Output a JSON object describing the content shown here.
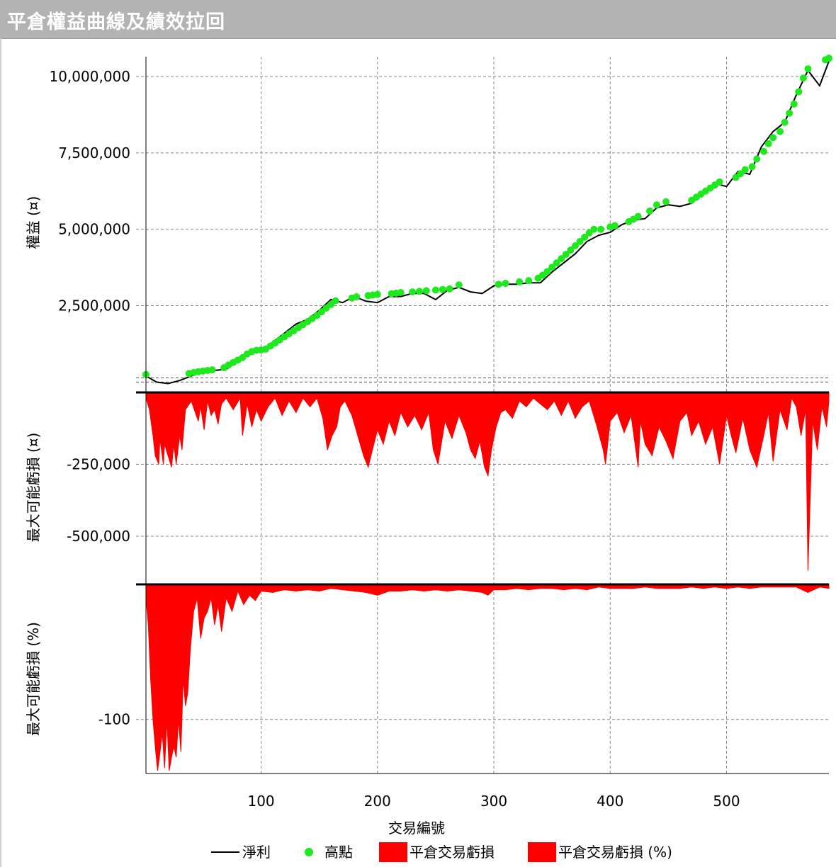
{
  "title": "平倉權益曲線及績效拉回",
  "colors": {
    "title_bg": "#b3b3b3",
    "equity_line": "#000000",
    "highs": "#1ee81e",
    "drawdown": "#ff0000",
    "grid": "#888888"
  },
  "chart_data": [
    {
      "type": "line",
      "panel": "equity",
      "ylabel": "權益 (¤)",
      "ylim": [
        -200000,
        10650000
      ],
      "yticks": [
        10000000,
        7500000,
        5000000,
        2500000
      ],
      "ytick_labels": [
        "10,000,000",
        "7,500,000",
        "5,000,000",
        "2,500,000"
      ],
      "series": [
        {
          "name": "淨利",
          "x": [
            1,
            10,
            20,
            30,
            40,
            50,
            60,
            70,
            80,
            90,
            100,
            110,
            120,
            130,
            140,
            150,
            160,
            170,
            180,
            190,
            200,
            210,
            220,
            230,
            240,
            250,
            260,
            270,
            280,
            290,
            300,
            310,
            320,
            330,
            340,
            350,
            360,
            370,
            380,
            390,
            400,
            410,
            420,
            430,
            440,
            450,
            460,
            470,
            480,
            490,
            500,
            510,
            520,
            530,
            540,
            550,
            560,
            570,
            580,
            588
          ],
          "values": [
            200000,
            0,
            -50000,
            50000,
            200000,
            350000,
            380000,
            420000,
            700000,
            950000,
            1050000,
            1300000,
            1600000,
            1900000,
            2050000,
            2350000,
            2700000,
            2600000,
            2800000,
            2650000,
            2600000,
            2800000,
            2800000,
            2900000,
            2900000,
            2700000,
            3000000,
            3100000,
            2950000,
            2900000,
            3150000,
            3200000,
            3200000,
            3250000,
            3250000,
            3600000,
            3900000,
            4200000,
            4600000,
            4800000,
            4900000,
            5150000,
            5300000,
            5350000,
            5700000,
            5800000,
            5750000,
            5850000,
            6200000,
            6500000,
            6400000,
            6900000,
            6800000,
            7700000,
            8200000,
            8500000,
            9400000,
            10200000,
            9700000,
            10500000
          ]
        },
        {
          "name": "高點",
          "x": [
            1,
            38,
            42,
            46,
            50,
            54,
            58,
            68,
            72,
            76,
            80,
            84,
            88,
            92,
            96,
            100,
            104,
            108,
            112,
            116,
            120,
            124,
            128,
            132,
            136,
            140,
            144,
            148,
            152,
            156,
            160,
            164,
            178,
            182,
            192,
            196,
            200,
            212,
            216,
            220,
            230,
            236,
            242,
            250,
            256,
            262,
            270,
            304,
            310,
            322,
            330,
            338,
            342,
            346,
            350,
            354,
            358,
            362,
            366,
            370,
            374,
            378,
            382,
            386,
            392,
            400,
            404,
            416,
            420,
            424,
            434,
            440,
            448,
            470,
            474,
            478,
            482,
            486,
            490,
            494,
            508,
            512,
            516,
            522,
            526,
            532,
            536,
            540,
            546,
            550,
            554,
            558,
            562,
            566,
            570,
            585,
            588
          ],
          "values": [
            250000,
            280000,
            310000,
            340000,
            360000,
            380000,
            400000,
            470000,
            560000,
            640000,
            720000,
            800000,
            920000,
            1000000,
            1040000,
            1050000,
            1080000,
            1180000,
            1280000,
            1380000,
            1480000,
            1580000,
            1680000,
            1780000,
            1880000,
            1980000,
            2080000,
            2180000,
            2300000,
            2420000,
            2540000,
            2660000,
            2750000,
            2790000,
            2830000,
            2850000,
            2870000,
            2890000,
            2910000,
            2930000,
            2950000,
            2970000,
            2990000,
            3010000,
            3030000,
            3050000,
            3180000,
            3200000,
            3230000,
            3280000,
            3320000,
            3400000,
            3500000,
            3620000,
            3760000,
            3900000,
            4040000,
            4180000,
            4320000,
            4460000,
            4600000,
            4740000,
            4880000,
            5000000,
            5000000,
            5080000,
            5120000,
            5250000,
            5330000,
            5420000,
            5600000,
            5800000,
            5900000,
            5950000,
            6050000,
            6150000,
            6250000,
            6350000,
            6450000,
            6550000,
            6700000,
            6820000,
            6950000,
            7050000,
            7300000,
            7550000,
            7800000,
            8000000,
            8200000,
            8500000,
            8800000,
            9100000,
            9500000,
            9950000,
            10250000,
            10550000,
            10600000
          ]
        }
      ]
    },
    {
      "type": "area",
      "panel": "drawdown_currency",
      "ylabel": "最大可能虧損 (¤)",
      "ylim": [
        -660000,
        0
      ],
      "yticks": [
        -250000,
        -500000
      ],
      "ytick_labels": [
        "-250,000",
        "-500,000"
      ],
      "series": [
        {
          "name": "平倉交易虧損",
          "x": [
            1,
            4,
            7,
            9,
            12,
            13,
            16,
            17,
            20,
            23,
            25,
            27,
            30,
            32,
            35,
            40,
            46,
            48,
            51,
            54,
            57,
            60,
            63,
            66,
            70,
            76,
            82,
            84,
            88,
            92,
            96,
            100,
            106,
            112,
            118,
            124,
            130,
            136,
            142,
            148,
            153,
            157,
            161,
            165,
            168,
            172,
            178,
            183,
            188,
            192,
            195,
            200,
            205,
            210,
            215,
            220,
            226,
            232,
            238,
            244,
            248,
            252,
            258,
            264,
            270,
            276,
            280,
            284,
            288,
            292,
            295,
            298,
            302,
            306,
            310,
            316,
            322,
            328,
            334,
            340,
            346,
            352,
            358,
            364,
            370,
            376,
            382,
            388,
            394,
            396,
            400,
            406,
            412,
            418,
            424,
            426,
            430,
            436,
            442,
            448,
            454,
            460,
            466,
            470,
            476,
            482,
            488,
            494,
            500,
            504,
            508,
            514,
            520,
            526,
            532,
            536,
            540,
            546,
            552,
            556,
            560,
            564,
            568,
            570,
            574,
            578,
            582,
            586,
            588
          ],
          "values": [
            -20000,
            -60000,
            -150000,
            -220000,
            -250000,
            -160000,
            -250000,
            -180000,
            -220000,
            -260000,
            -180000,
            -250000,
            -150000,
            -200000,
            -60000,
            -30000,
            -100000,
            -50000,
            -130000,
            -30000,
            -80000,
            -60000,
            -110000,
            -40000,
            -20000,
            -60000,
            -20000,
            -150000,
            -40000,
            -120000,
            -60000,
            -100000,
            -50000,
            -20000,
            -80000,
            -30000,
            -70000,
            -20000,
            -50000,
            -20000,
            -90000,
            -200000,
            -150000,
            -120000,
            -50000,
            -30000,
            -80000,
            -150000,
            -220000,
            -260000,
            -210000,
            -130000,
            -180000,
            -100000,
            -150000,
            -70000,
            -120000,
            -80000,
            -130000,
            -70000,
            -200000,
            -250000,
            -100000,
            -160000,
            -80000,
            -140000,
            -200000,
            -230000,
            -170000,
            -260000,
            -290000,
            -200000,
            -120000,
            -70000,
            -60000,
            -90000,
            -30000,
            -50000,
            -20000,
            -40000,
            -60000,
            -30000,
            -80000,
            -30000,
            -90000,
            -50000,
            -30000,
            -110000,
            -200000,
            -250000,
            -100000,
            -70000,
            -140000,
            -80000,
            -260000,
            -100000,
            -180000,
            -220000,
            -120000,
            -170000,
            -230000,
            -100000,
            -70000,
            -150000,
            -100000,
            -180000,
            -120000,
            -250000,
            -80000,
            -150000,
            -210000,
            -90000,
            -200000,
            -260000,
            -150000,
            -70000,
            -240000,
            -60000,
            -130000,
            -20000,
            -50000,
            -150000,
            -60000,
            -620000,
            -100000,
            -200000,
            -50000,
            -120000,
            -30000
          ]
        }
      ]
    },
    {
      "type": "area",
      "panel": "drawdown_percent",
      "ylabel": "最大可能虧損 (%)",
      "ylim": [
        -140,
        0
      ],
      "yticks": [
        -100
      ],
      "ytick_labels": [
        "-100"
      ],
      "series": [
        {
          "name": "平倉交易虧損 (%)",
          "x": [
            1,
            3,
            5,
            7,
            9,
            11,
            13,
            15,
            17,
            19,
            21,
            23,
            25,
            27,
            29,
            31,
            33,
            35,
            37,
            39,
            42,
            45,
            48,
            51,
            54,
            57,
            60,
            63,
            66,
            70,
            75,
            80,
            85,
            90,
            95,
            100,
            110,
            120,
            130,
            140,
            150,
            160,
            170,
            180,
            190,
            200,
            210,
            220,
            230,
            240,
            250,
            260,
            270,
            280,
            290,
            295,
            300,
            310,
            320,
            330,
            340,
            350,
            360,
            370,
            380,
            390,
            400,
            410,
            420,
            430,
            440,
            450,
            460,
            470,
            480,
            490,
            500,
            510,
            520,
            530,
            540,
            550,
            560,
            570,
            580,
            588
          ],
          "values": [
            -10,
            -30,
            -70,
            -100,
            -120,
            -138,
            -125,
            -110,
            -136,
            -100,
            -138,
            -128,
            -120,
            -128,
            -100,
            -124,
            -70,
            -90,
            -80,
            -50,
            -20,
            -10,
            -40,
            -25,
            -20,
            -10,
            -30,
            -15,
            -35,
            -10,
            -20,
            -5,
            -15,
            -8,
            -12,
            -5,
            -6,
            -4,
            -5,
            -4,
            -5,
            -3,
            -4,
            -5,
            -6,
            -8,
            -5,
            -5,
            -4,
            -5,
            -4,
            -5,
            -4,
            -5,
            -6,
            -8,
            -4,
            -4,
            -3,
            -4,
            -3,
            -3,
            -4,
            -3,
            -4,
            -2,
            -3,
            -3,
            -3,
            -2,
            -3,
            -3,
            -3,
            -2,
            -3,
            -2,
            -3,
            -2,
            -3,
            -2,
            -2,
            -2,
            -2,
            -6,
            -2,
            -3
          ]
        }
      ]
    }
  ],
  "x_axis": {
    "label": "交易編號",
    "xlim": [
      1,
      588
    ],
    "ticks": [
      100,
      200,
      300,
      400,
      500
    ],
    "tick_labels": [
      "100",
      "200",
      "300",
      "400",
      "500"
    ]
  },
  "legend": {
    "placement": "bottom",
    "items": [
      "淨利",
      "高點",
      "平倉交易虧損",
      "平倉交易虧損 (%)"
    ]
  }
}
